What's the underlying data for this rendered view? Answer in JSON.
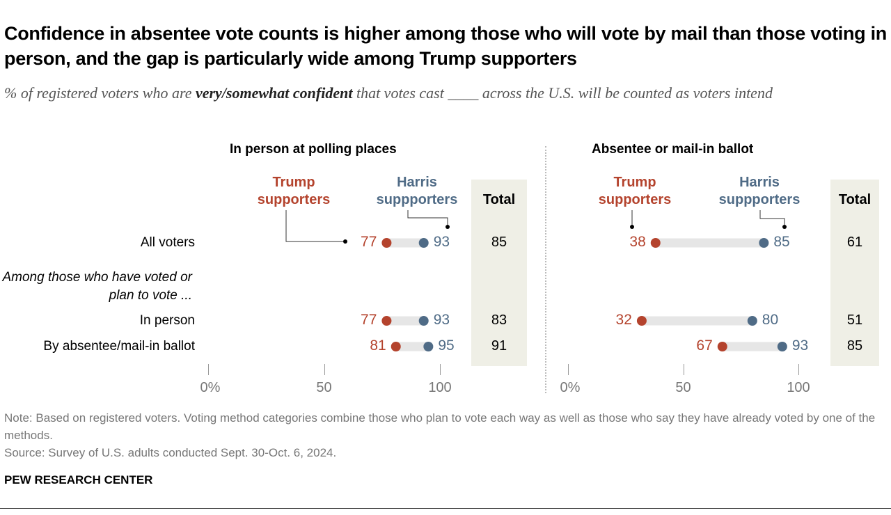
{
  "title": "Confidence in absentee vote counts is higher among those who will vote by mail than those voting in person, and the gap is particularly wide among Trump supporters",
  "subtitle": {
    "pre": "% of registered voters who are ",
    "bold": "very/somewhat confident",
    "post": " that votes cast ____ across the U.S. will be counted as voters intend"
  },
  "colors": {
    "trump": "#b4432d",
    "harris": "#4f6b86",
    "bar": "#e6e6e6",
    "total_band": "#efefe6"
  },
  "chart_data": [
    {
      "type": "dot",
      "title": "In person at polling places",
      "xlim": [
        0,
        100
      ],
      "ticks": [
        "0%",
        "50",
        "100"
      ],
      "legend": {
        "trump": "Trump supporters",
        "harris": "Harris suppporters",
        "total": "Total"
      },
      "rows": [
        {
          "label": "All voters",
          "trump": 77,
          "harris": 93,
          "total": 85
        },
        {
          "label": "In person",
          "trump": 77,
          "harris": 93,
          "total": 83
        },
        {
          "label": "By absentee/mail-in ballot",
          "trump": 81,
          "harris": 95,
          "total": 91
        }
      ]
    },
    {
      "type": "dot",
      "title": "Absentee or mail-in ballot",
      "xlim": [
        0,
        100
      ],
      "ticks": [
        "0%",
        "50",
        "100"
      ],
      "legend": {
        "trump": "Trump supporters",
        "harris": "Harris suppporters",
        "total": "Total"
      },
      "rows": [
        {
          "label": "All voters",
          "trump": 38,
          "harris": 85,
          "total": 61
        },
        {
          "label": "In person",
          "trump": 32,
          "harris": 80,
          "total": 51
        },
        {
          "label": "By absentee/mail-in ballot",
          "trump": 67,
          "harris": 93,
          "total": 85
        }
      ]
    }
  ],
  "group_label": "Among those who have voted or plan to vote ...",
  "note": "Note: Based on registered voters. Voting method categories combine those who plan to vote each way as well as those who say they have already voted by one of the methods.",
  "source": "Source: Survey of U.S. adults conducted Sept. 30-Oct. 6, 2024.",
  "brand": "PEW RESEARCH CENTER"
}
